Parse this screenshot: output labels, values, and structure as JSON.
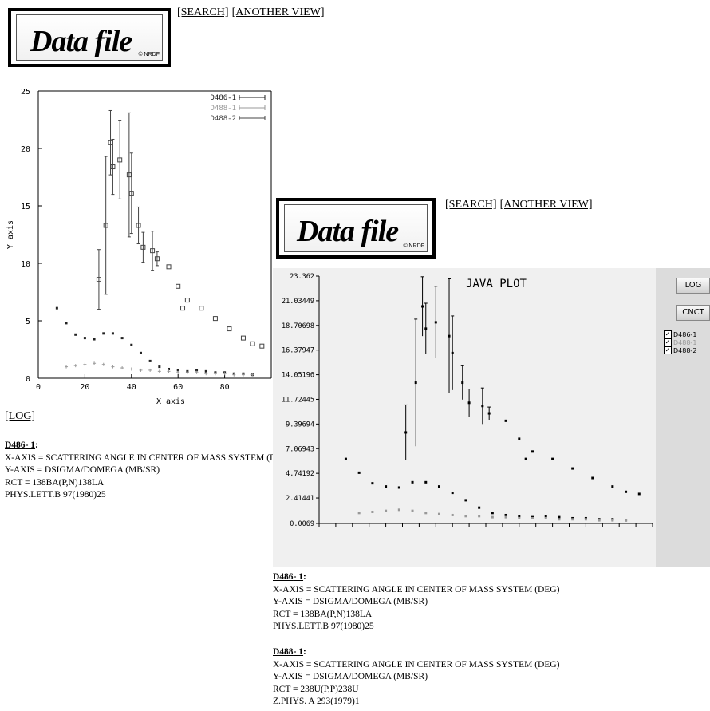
{
  "nav": {
    "search": "[SEARCH]",
    "another_view": "[ANOTHER VIEW]"
  },
  "logo": {
    "word": "Data file",
    "mark": "© NRDF"
  },
  "plot1": {
    "log_link": "[LOG]",
    "chart_data": {
      "type": "scatter",
      "xlabel": "X axis",
      "ylabel": "Y axis",
      "xlim": [
        0,
        100
      ],
      "ylim": [
        0,
        25
      ],
      "xticks": [
        0,
        20,
        40,
        60,
        80
      ],
      "yticks": [
        0,
        5,
        10,
        15,
        20,
        25
      ],
      "legend_position": "top-right",
      "series": [
        {
          "name": "D486-1",
          "color": "#222222",
          "points": [
            [
              8,
              6.1
            ],
            [
              12,
              4.8
            ],
            [
              16,
              3.8
            ],
            [
              20,
              3.5
            ],
            [
              24,
              3.4
            ],
            [
              28,
              3.9
            ],
            [
              32,
              3.9
            ],
            [
              36,
              3.5
            ],
            [
              40,
              2.9
            ],
            [
              44,
              2.2
            ],
            [
              48,
              1.5
            ],
            [
              52,
              1.0
            ],
            [
              56,
              0.8
            ],
            [
              60,
              0.7
            ],
            [
              64,
              0.6
            ],
            [
              68,
              0.7
            ],
            [
              72,
              0.6
            ],
            [
              76,
              0.5
            ],
            [
              80,
              0.5
            ],
            [
              84,
              0.4
            ],
            [
              88,
              0.4
            ],
            [
              92,
              0.3
            ]
          ]
        },
        {
          "name": "D488-1",
          "color": "#999999",
          "points": [
            [
              12,
              1.0
            ],
            [
              16,
              1.1
            ],
            [
              20,
              1.2
            ],
            [
              24,
              1.3
            ],
            [
              28,
              1.2
            ],
            [
              32,
              1.0
            ],
            [
              36,
              0.9
            ],
            [
              40,
              0.8
            ],
            [
              44,
              0.7
            ],
            [
              48,
              0.7
            ],
            [
              52,
              0.6
            ],
            [
              56,
              0.6
            ],
            [
              60,
              0.5
            ],
            [
              64,
              0.5
            ],
            [
              68,
              0.5
            ],
            [
              72,
              0.4
            ],
            [
              76,
              0.4
            ],
            [
              80,
              0.4
            ],
            [
              84,
              0.3
            ],
            [
              88,
              0.3
            ],
            [
              92,
              0.3
            ]
          ]
        },
        {
          "name": "D488-2",
          "color": "#444444",
          "points": [
            [
              26,
              8.6
            ],
            [
              29,
              13.3
            ],
            [
              31,
              20.5
            ],
            [
              32,
              18.4
            ],
            [
              35,
              19.0
            ],
            [
              39,
              17.7
            ],
            [
              40,
              16.1
            ],
            [
              43,
              13.3
            ],
            [
              45,
              11.4
            ],
            [
              49,
              11.1
            ],
            [
              51,
              10.4
            ],
            [
              56,
              9.7
            ],
            [
              60,
              8.0
            ],
            [
              62,
              6.1
            ],
            [
              64,
              6.8
            ],
            [
              70,
              6.1
            ],
            [
              76,
              5.2
            ],
            [
              82,
              4.3
            ],
            [
              88,
              3.5
            ],
            [
              92,
              3.0
            ],
            [
              96,
              2.8
            ]
          ]
        }
      ]
    },
    "info": {
      "dataset": "D486",
      "suffix": "- 1",
      "colon": ":",
      "xaxis": "X-AXIS = SCATTERING ANGLE IN CENTER OF MASS SYSTEM (DEG)",
      "yaxis": "Y-AXIS = DSIGMA/DOMEGA (MB/SR)",
      "rct": "RCT = 138BA(P,N)138LA",
      "ref": "PHYS.LETT.B 97(1980)25"
    }
  },
  "plot2": {
    "title": "JAVA PLOT",
    "buttons": {
      "log": "LOG",
      "cnct": "CNCT"
    },
    "legend": [
      "D486-1",
      "D488-1",
      "D488-2"
    ],
    "chart_data": {
      "type": "scatter",
      "title": "JAVA PLOT",
      "ylim": [
        0.0069,
        23.362
      ],
      "yticks": [
        "23.362",
        "21.03449",
        "18.70698",
        "16.37947",
        "14.05196",
        "11.72445",
        "9.39694",
        "7.06943",
        "4.74192",
        "2.41441",
        "0.0069"
      ]
    },
    "info": [
      {
        "dataset": "D486",
        "suffix": "- 1",
        "colon": ":",
        "xaxis": "X-AXIS = SCATTERING ANGLE IN CENTER OF MASS SYSTEM (DEG)",
        "yaxis": "Y-AXIS = DSIGMA/DOMEGA (MB/SR)",
        "rct": "RCT = 138BA(P,N)138LA",
        "ref": "PHYS.LETT.B 97(1980)25"
      },
      {
        "dataset": "D488",
        "suffix": "- 1",
        "colon": ":",
        "xaxis": "X-AXIS = SCATTERING ANGLE IN CENTER OF MASS SYSTEM (DEG)",
        "yaxis": "Y-AXIS = DSIGMA/DOMEGA (MB/SR)",
        "rct": "RCT = 238U(P,P)238U",
        "ref": "Z.PHYS. A 293(1979)1"
      }
    ]
  }
}
